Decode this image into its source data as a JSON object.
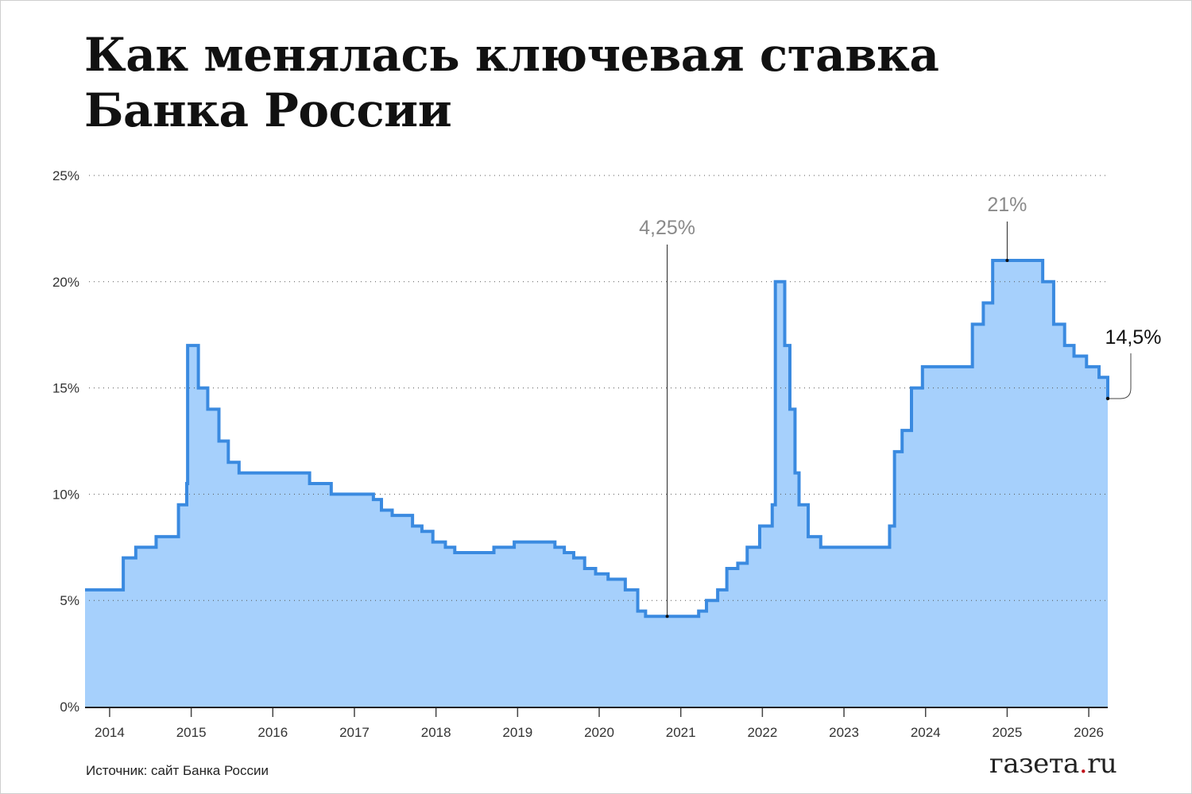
{
  "title_line1": "Как менялась ключевая ставка",
  "title_line2": "Банка России",
  "source": "Источник: сайт Банка России",
  "logo": {
    "main": "газета",
    "dot": ".",
    "tld": "ru"
  },
  "colors": {
    "fill": "#a6d0fc",
    "line": "#3a8ae0",
    "annotation_gray": "#8a8a8a",
    "logo_dot": "#c0141c"
  },
  "chart_data": {
    "type": "area",
    "step": true,
    "title": "Как менялась ключевая ставка Банка России",
    "xlabel": "",
    "ylabel": "",
    "xlim": [
      "2013-09-13",
      "2026-03-27"
    ],
    "ylim": [
      0,
      25
    ],
    "yticks": [
      0,
      5,
      10,
      15,
      20,
      25
    ],
    "ytick_labels": [
      "0%",
      "5%",
      "10%",
      "15%",
      "20%",
      "25%"
    ],
    "xticks": [
      "2014",
      "2015",
      "2016",
      "2017",
      "2018",
      "2019",
      "2020",
      "2021",
      "2022",
      "2023",
      "2024",
      "2025",
      "2026"
    ],
    "grid": "horizontal dotted",
    "points": [
      [
        "2013-09-13",
        5.5
      ],
      [
        "2014-03-03",
        7.0
      ],
      [
        "2014-04-28",
        7.5
      ],
      [
        "2014-07-28",
        8.0
      ],
      [
        "2014-11-05",
        9.5
      ],
      [
        "2014-12-12",
        10.5
      ],
      [
        "2014-12-16",
        17.0
      ],
      [
        "2015-02-02",
        15.0
      ],
      [
        "2015-03-16",
        14.0
      ],
      [
        "2015-05-05",
        12.5
      ],
      [
        "2015-06-16",
        11.5
      ],
      [
        "2015-08-03",
        11.0
      ],
      [
        "2016-06-14",
        10.5
      ],
      [
        "2016-09-19",
        10.0
      ],
      [
        "2017-03-27",
        9.75
      ],
      [
        "2017-05-02",
        9.25
      ],
      [
        "2017-06-19",
        9.0
      ],
      [
        "2017-09-18",
        8.5
      ],
      [
        "2017-10-30",
        8.25
      ],
      [
        "2017-12-18",
        7.75
      ],
      [
        "2018-02-12",
        7.5
      ],
      [
        "2018-03-26",
        7.25
      ],
      [
        "2018-09-17",
        7.5
      ],
      [
        "2018-12-17",
        7.75
      ],
      [
        "2019-06-17",
        7.5
      ],
      [
        "2019-07-29",
        7.25
      ],
      [
        "2019-09-09",
        7.0
      ],
      [
        "2019-10-28",
        6.5
      ],
      [
        "2019-12-16",
        6.25
      ],
      [
        "2020-02-10",
        6.0
      ],
      [
        "2020-04-27",
        5.5
      ],
      [
        "2020-06-22",
        4.5
      ],
      [
        "2020-07-27",
        4.25
      ],
      [
        "2021-03-22",
        4.5
      ],
      [
        "2021-04-26",
        5.0
      ],
      [
        "2021-06-15",
        5.5
      ],
      [
        "2021-07-26",
        6.5
      ],
      [
        "2021-09-13",
        6.75
      ],
      [
        "2021-10-25",
        7.5
      ],
      [
        "2021-12-20",
        8.5
      ],
      [
        "2022-02-14",
        9.5
      ],
      [
        "2022-02-28",
        20.0
      ],
      [
        "2022-04-11",
        17.0
      ],
      [
        "2022-05-04",
        14.0
      ],
      [
        "2022-05-27",
        11.0
      ],
      [
        "2022-06-14",
        9.5
      ],
      [
        "2022-07-25",
        8.0
      ],
      [
        "2022-09-19",
        7.5
      ],
      [
        "2023-07-24",
        8.5
      ],
      [
        "2023-08-15",
        12.0
      ],
      [
        "2023-09-18",
        13.0
      ],
      [
        "2023-10-30",
        15.0
      ],
      [
        "2023-12-18",
        16.0
      ],
      [
        "2024-07-29",
        18.0
      ],
      [
        "2024-09-16",
        19.0
      ],
      [
        "2024-10-28",
        21.0
      ],
      [
        "2025-06-09",
        20.0
      ],
      [
        "2025-07-28",
        18.0
      ],
      [
        "2025-09-15",
        17.0
      ],
      [
        "2025-10-27",
        16.5
      ],
      [
        "2025-12-22",
        16.0
      ],
      [
        "2026-02-16",
        15.5
      ],
      [
        "2026-03-27",
        14.5
      ]
    ],
    "annotations": [
      {
        "label": "4,25%",
        "date": "2020-11-01",
        "value": 4.25,
        "color": "gray"
      },
      {
        "label": "21%",
        "date": "2025-01-01",
        "value": 21,
        "color": "gray"
      },
      {
        "label": "14,5%",
        "date": "2026-03-27",
        "value": 14.5,
        "color": "black"
      }
    ]
  }
}
